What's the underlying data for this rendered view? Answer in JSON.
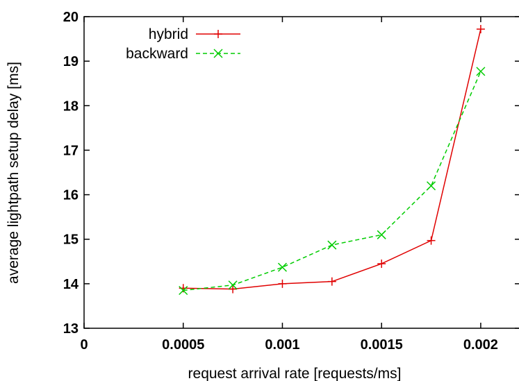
{
  "chart_data": {
    "type": "line",
    "title": "",
    "xlabel": "request arrival rate [requests/ms]",
    "ylabel": "average lightpath setup delay [ms]",
    "xlim": [
      0,
      0.0022
    ],
    "ylim": [
      13,
      20
    ],
    "xticks": [
      0,
      0.0005,
      0.001,
      0.0015,
      0.002
    ],
    "xtick_labels": [
      "0",
      "0.0005",
      "0.001",
      "0.0015",
      "0.002"
    ],
    "yticks": [
      13,
      14,
      15,
      16,
      17,
      18,
      19,
      20
    ],
    "ytick_labels": [
      "13",
      "14",
      "15",
      "16",
      "17",
      "18",
      "19",
      "20"
    ],
    "grid": false,
    "legend_position": "top-left",
    "series": [
      {
        "name": "hybrid",
        "color": "#e00000",
        "dash": "solid",
        "marker": "plus",
        "x": [
          0.0005,
          0.00075,
          0.001,
          0.00125,
          0.0015,
          0.00175,
          0.002
        ],
        "y": [
          13.9,
          13.88,
          14.0,
          14.05,
          14.45,
          14.97,
          19.72
        ]
      },
      {
        "name": "backward",
        "color": "#00cc00",
        "dash": "dashed",
        "marker": "cross",
        "x": [
          0.0005,
          0.00075,
          0.001,
          0.00125,
          0.0015,
          0.00175,
          0.002
        ],
        "y": [
          13.85,
          13.97,
          14.37,
          14.87,
          15.1,
          16.2,
          18.77
        ]
      }
    ]
  }
}
